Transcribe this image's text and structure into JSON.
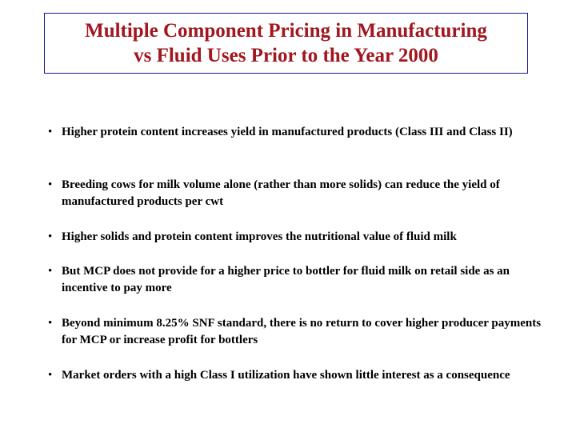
{
  "slide": {
    "title_line1": "Multiple Component Pricing in Manufacturing",
    "title_line2": "vs Fluid Uses Prior to the Year 2000",
    "bullet_glyph": "•",
    "bullets": [
      "Higher protein content increases yield in manufactured products (Class III and Class II)",
      "Breeding cows for milk volume alone (rather than more solids) can reduce the yield of manufactured products per cwt",
      "Higher solids and protein content improves the nutritional value of fluid milk",
      "But MCP does not provide for a higher price to bottler for fluid milk on retail side as an incentive to pay more",
      "Beyond minimum 8.25% SNF standard, there is no return to cover higher producer payments for MCP or increase profit for bottlers",
      "Market orders with a high Class I utilization have shown little interest as a consequence"
    ]
  },
  "colors": {
    "title_text": "#a0171f",
    "title_border": "#1a1a8c",
    "body_text": "#000000",
    "background": "#ffffff"
  }
}
